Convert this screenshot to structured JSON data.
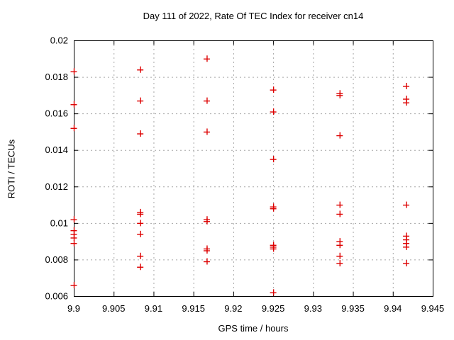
{
  "page": {
    "background": "#ffffff"
  },
  "chart_data": {
    "type": "scatter",
    "title": "Day 111 of 2022, Rate Of TEC Index for receiver cn14",
    "xlabel": "GPS time / hours",
    "ylabel": "ROTI / TECUs",
    "xlim": [
      9.9,
      9.945
    ],
    "ylim": [
      0.006,
      0.02
    ],
    "xticks": [
      9.9,
      9.905,
      9.91,
      9.915,
      9.92,
      9.925,
      9.93,
      9.935,
      9.94,
      9.945
    ],
    "xtick_labels": [
      "9.9",
      "9.905",
      "9.91",
      "9.915",
      "9.92",
      "9.925",
      "9.93",
      "9.935",
      "9.94",
      "9.945"
    ],
    "yticks": [
      0.006,
      0.008,
      0.01,
      0.012,
      0.014,
      0.016,
      0.018,
      0.02
    ],
    "ytick_labels": [
      "0.006",
      "0.008",
      "0.01",
      "0.012",
      "0.014",
      "0.016",
      "0.018",
      "0.02"
    ],
    "grid": true,
    "legend": "none",
    "marker": {
      "shape": "plus",
      "color": "#dd0000",
      "size": 9
    },
    "series": [
      {
        "name": "ROTI",
        "points": [
          [
            9.9,
            0.0183
          ],
          [
            9.9,
            0.0165
          ],
          [
            9.9,
            0.0152
          ],
          [
            9.9,
            0.0102
          ],
          [
            9.9,
            0.0096
          ],
          [
            9.9,
            0.0094
          ],
          [
            9.9,
            0.0092
          ],
          [
            9.9,
            0.0089
          ],
          [
            9.9,
            0.0066
          ],
          [
            9.90833,
            0.0184
          ],
          [
            9.90833,
            0.0167
          ],
          [
            9.90833,
            0.0149
          ],
          [
            9.90833,
            0.0106
          ],
          [
            9.90833,
            0.0105
          ],
          [
            9.90833,
            0.01
          ],
          [
            9.90833,
            0.0094
          ],
          [
            9.90833,
            0.0082
          ],
          [
            9.90833,
            0.0076
          ],
          [
            9.91667,
            0.019
          ],
          [
            9.91667,
            0.0167
          ],
          [
            9.91667,
            0.015
          ],
          [
            9.91667,
            0.0102
          ],
          [
            9.91667,
            0.0101
          ],
          [
            9.91667,
            0.0086
          ],
          [
            9.91667,
            0.0085
          ],
          [
            9.91667,
            0.0079
          ],
          [
            9.925,
            0.0173
          ],
          [
            9.925,
            0.0161
          ],
          [
            9.925,
            0.0135
          ],
          [
            9.925,
            0.0109
          ],
          [
            9.925,
            0.0108
          ],
          [
            9.925,
            0.0088
          ],
          [
            9.925,
            0.0087
          ],
          [
            9.925,
            0.0086
          ],
          [
            9.925,
            0.0062
          ],
          [
            9.93333,
            0.0171
          ],
          [
            9.93333,
            0.017
          ],
          [
            9.93333,
            0.0148
          ],
          [
            9.93333,
            0.011
          ],
          [
            9.93333,
            0.0105
          ],
          [
            9.93333,
            0.009
          ],
          [
            9.93333,
            0.0088
          ],
          [
            9.93333,
            0.0082
          ],
          [
            9.93333,
            0.0078
          ],
          [
            9.94167,
            0.0175
          ],
          [
            9.94167,
            0.0168
          ],
          [
            9.94167,
            0.0166
          ],
          [
            9.94167,
            0.011
          ],
          [
            9.94167,
            0.0093
          ],
          [
            9.94167,
            0.0091
          ],
          [
            9.94167,
            0.0089
          ],
          [
            9.94167,
            0.0087
          ],
          [
            9.94167,
            0.0078
          ]
        ]
      }
    ]
  },
  "styles": {
    "axis_color": "#000000",
    "grid_color": "#a6a6a6",
    "text_color": "#000000",
    "point_color": "#dd0000"
  }
}
